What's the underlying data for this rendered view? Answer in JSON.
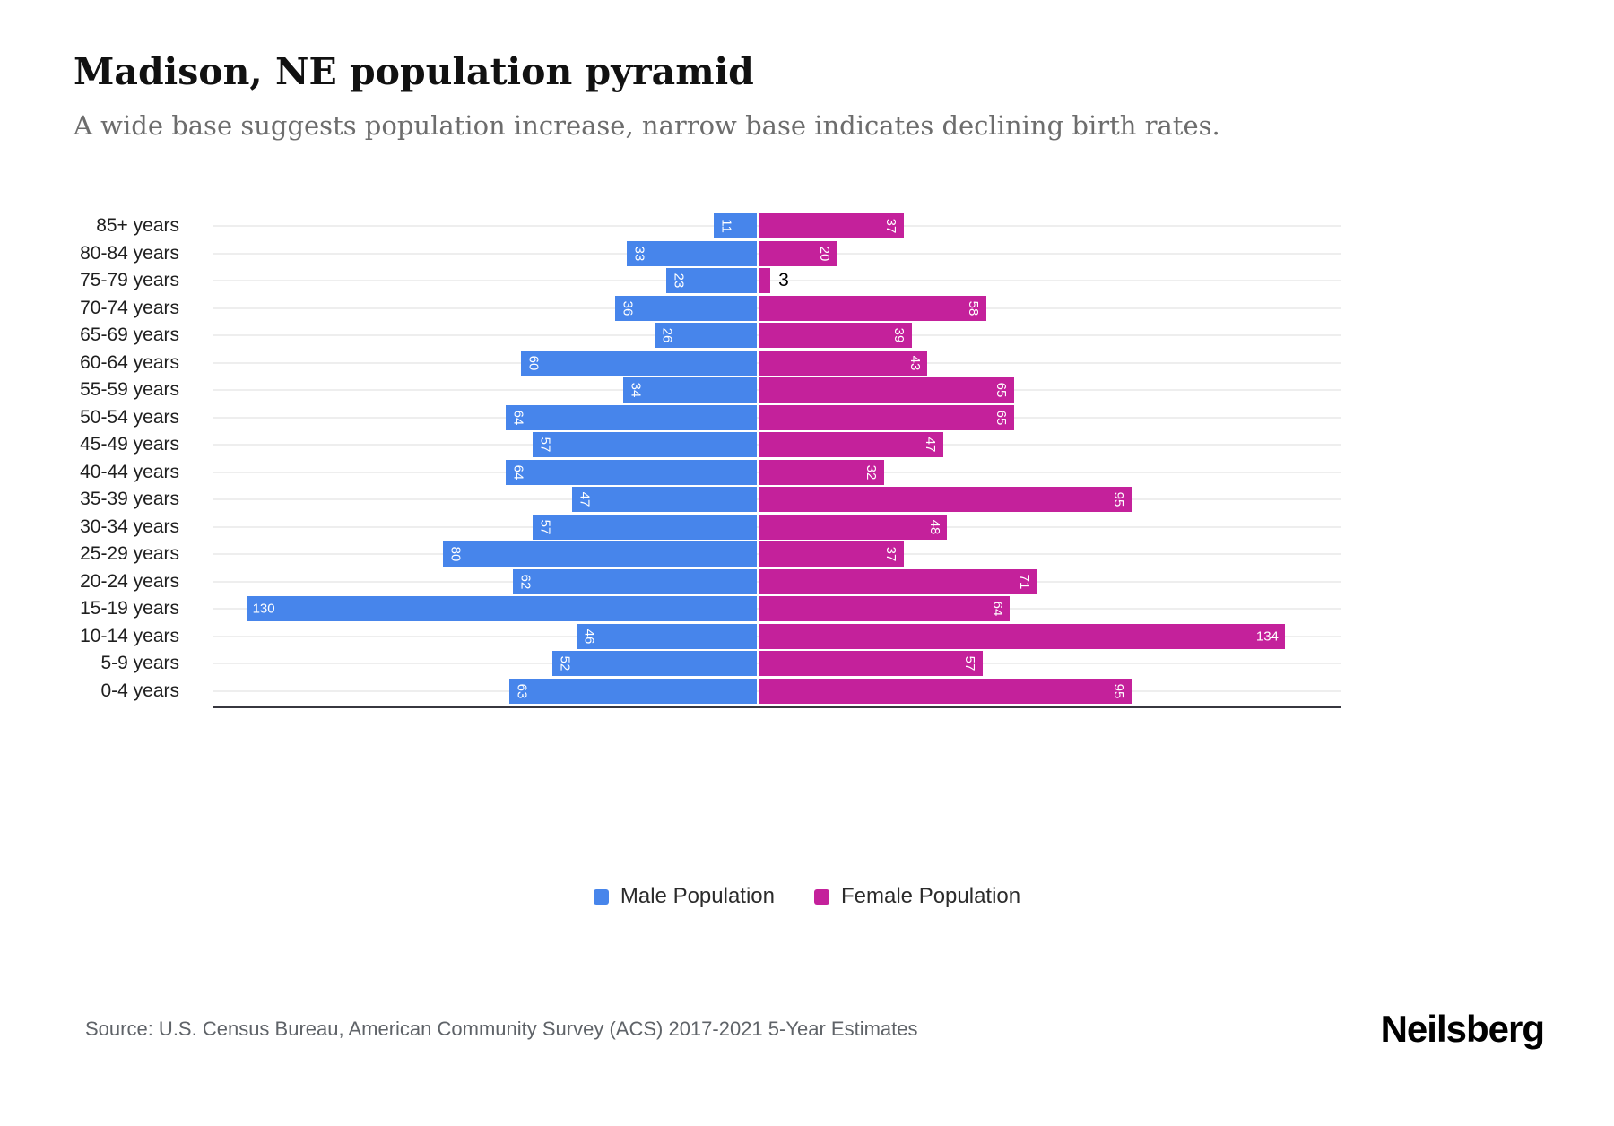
{
  "title": "Madison, NE population pyramid",
  "subtitle": "A wide base suggests population increase, narrow base indicates declining birth rates.",
  "source": "Source: U.S. Census Bureau, American Community Survey (ACS) 2017-2021 5-Year Estimates",
  "brand": "Neilsberg",
  "legend": {
    "male": "Male Population",
    "female": "Female Population"
  },
  "colors": {
    "male": "#4785EB",
    "female": "#C4219B",
    "gridline": "#eeeeee",
    "axis_line": "#37373f",
    "subtitle_text": "#6d6d6d",
    "source_text": "#5f6368"
  },
  "chart_data": {
    "type": "bar",
    "variant": "population-pyramid",
    "orientation": "horizontal",
    "title": "Madison, NE population pyramid",
    "xlabel": "",
    "ylabel": "",
    "grid": true,
    "legend_position": "bottom",
    "axis_half_range": 148,
    "categories": [
      "85+ years",
      "80-84 years",
      "75-79 years",
      "70-74 years",
      "65-69 years",
      "60-64 years",
      "55-59 years",
      "50-54 years",
      "45-49 years",
      "40-44 years",
      "35-39 years",
      "30-34 years",
      "25-29 years",
      "20-24 years",
      "15-19 years",
      "10-14 years",
      "5-9 years",
      "0-4 years"
    ],
    "series": [
      {
        "name": "Male Population",
        "color": "#4785EB",
        "values": [
          11,
          33,
          23,
          36,
          26,
          60,
          34,
          64,
          57,
          64,
          47,
          57,
          80,
          62,
          130,
          46,
          52,
          63
        ]
      },
      {
        "name": "Female Population",
        "color": "#C4219B",
        "values": [
          37,
          20,
          3,
          58,
          39,
          43,
          65,
          65,
          47,
          32,
          95,
          48,
          37,
          71,
          64,
          134,
          57,
          95
        ]
      }
    ]
  }
}
